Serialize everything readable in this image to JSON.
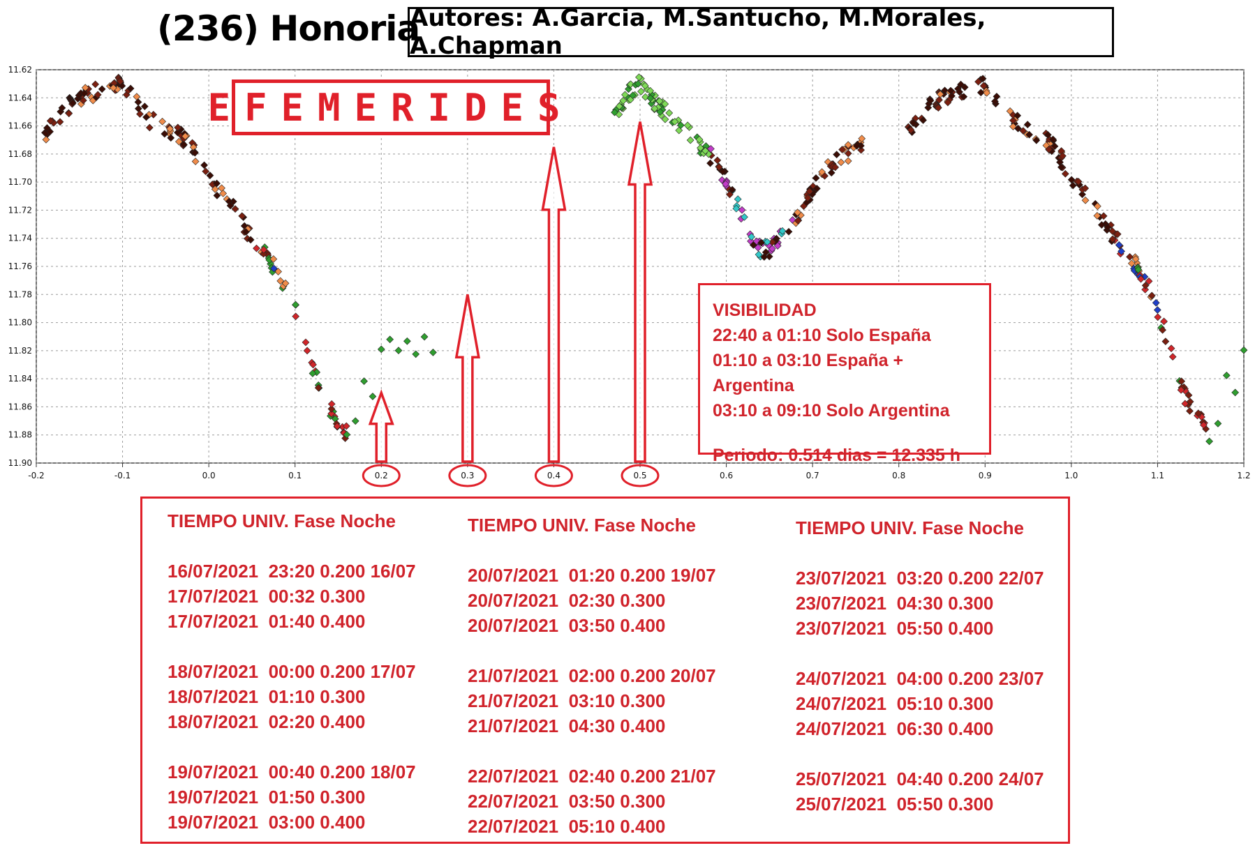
{
  "title": "(236) Honoria",
  "authors": "Autores: A.Garcia, M.Santucho, M.Morales, A.Chapman",
  "efemerides_label": "EFEMERIDES",
  "visibility": {
    "heading": "VISIBILIDAD",
    "lines": [
      "22:40 a 01:10 Solo España",
      "01:10 a 03:10 España + Argentina",
      "03:10 a 09:10 Solo Argentina"
    ],
    "period": "Periodo: 0.514 dias = 12.335 h"
  },
  "colors": {
    "accent": "#e0202a",
    "grid": "#9a9a9a"
  },
  "chart_data": {
    "type": "scatter",
    "title": "",
    "xlabel": "",
    "ylabel": "",
    "xlim": [
      -0.2,
      1.2
    ],
    "ylim": [
      11.62,
      11.9
    ],
    "y_inverted": true,
    "grid": true,
    "x_ticks": [
      "-0.2",
      "-0.1",
      "0.0",
      "0.1",
      "0.2",
      "0.3",
      "0.4",
      "0.5",
      "0.6",
      "0.7",
      "0.8",
      "0.9",
      "1.0",
      "1.1",
      "1.2"
    ],
    "y_ticks": [
      "11.62",
      "11.64",
      "11.66",
      "11.68",
      "11.70",
      "11.72",
      "11.74",
      "11.76",
      "11.78",
      "11.80",
      "11.82",
      "11.84",
      "11.86",
      "11.88",
      "11.90"
    ],
    "highlighted_phases": [
      "0.2",
      "0.3",
      "0.4",
      "0.5"
    ],
    "arrow_phases": [
      {
        "phase": 0.2,
        "top_mag": 11.85
      },
      {
        "phase": 0.3,
        "top_mag": 11.78
      },
      {
        "phase": 0.4,
        "top_mag": 11.675
      },
      {
        "phase": 0.5,
        "top_mag": 11.657
      }
    ],
    "series_colors": [
      "#3a0d05",
      "#7a1f10",
      "#d0262a",
      "#f08c4a",
      "#2f9e2f",
      "#7ed957",
      "#1f3fc8",
      "#c23cc8",
      "#32c8c8"
    ],
    "light_curve": {
      "phase": [
        -0.19,
        -0.17,
        -0.15,
        -0.13,
        -0.11,
        -0.1,
        -0.09,
        -0.07,
        -0.05,
        -0.03,
        -0.01,
        0.0,
        0.01,
        0.03,
        0.05,
        0.07,
        0.09,
        0.1,
        0.11,
        0.12,
        0.13,
        0.14,
        0.15,
        0.16
      ],
      "mag": [
        11.665,
        11.65,
        11.64,
        11.636,
        11.632,
        11.63,
        11.64,
        11.655,
        11.662,
        11.668,
        11.685,
        11.696,
        11.705,
        11.72,
        11.74,
        11.755,
        11.775,
        11.79,
        11.81,
        11.83,
        11.85,
        11.862,
        11.87,
        11.88
      ]
    },
    "segment_green_02": {
      "phase": [
        0.16,
        0.17,
        0.18,
        0.19,
        0.2,
        0.21,
        0.22,
        0.23,
        0.24,
        0.25,
        0.26
      ],
      "mag": [
        11.882,
        11.872,
        11.84,
        11.85,
        11.818,
        11.815,
        11.82,
        11.814,
        11.822,
        11.812,
        11.82
      ]
    },
    "segment_05_07": {
      "phase": [
        0.47,
        0.48,
        0.49,
        0.5,
        0.51,
        0.52,
        0.54,
        0.56,
        0.58,
        0.6,
        0.62,
        0.63,
        0.64,
        0.65,
        0.66,
        0.68,
        0.7,
        0.72,
        0.74,
        0.76
      ],
      "mag": [
        11.655,
        11.642,
        11.635,
        11.63,
        11.637,
        11.645,
        11.655,
        11.668,
        11.68,
        11.7,
        11.725,
        11.74,
        11.748,
        11.748,
        11.742,
        11.725,
        11.705,
        11.69,
        11.68,
        11.672
      ]
    }
  },
  "ephemeris": {
    "columns": [
      {
        "header": "TIEMPO UNIV.   Fase  Noche",
        "groups": [
          [
            "16/07/2021  23:20 0.200 16/07",
            "17/07/2021  00:32 0.300",
            "17/07/2021  01:40 0.400"
          ],
          [
            "18/07/2021  00:00 0.200 17/07",
            "18/07/2021  01:10 0.300",
            "18/07/2021  02:20 0.400"
          ],
          [
            "19/07/2021  00:40 0.200 18/07",
            "19/07/2021  01:50 0.300",
            "19/07/2021  03:00 0.400"
          ]
        ]
      },
      {
        "header": "TIEMPO UNIV.   Fase  Noche",
        "groups": [
          [
            "20/07/2021  01:20 0.200 19/07",
            "20/07/2021  02:30 0.300",
            "20/07/2021  03:50 0.400"
          ],
          [
            "21/07/2021  02:00 0.200 20/07",
            "21/07/2021  03:10 0.300",
            "21/07/2021  04:30 0.400"
          ],
          [
            "22/07/2021  02:40 0.200 21/07",
            "22/07/2021  03:50 0.300",
            "22/07/2021  05:10 0.400"
          ]
        ]
      },
      {
        "header": "TIEMPO UNIV.   Fase  Noche",
        "groups": [
          [
            "23/07/2021  03:20 0.200 22/07",
            "23/07/2021  04:30 0.300",
            "23/07/2021  05:50 0.400"
          ],
          [
            "24/07/2021  04:00 0.200 23/07",
            "24/07/2021  05:10 0.300",
            "24/07/2021  06:30 0.400"
          ],
          [
            "25/07/2021  04:40 0.200 24/07",
            "25/07/2021  05:50 0.300"
          ]
        ]
      }
    ]
  }
}
